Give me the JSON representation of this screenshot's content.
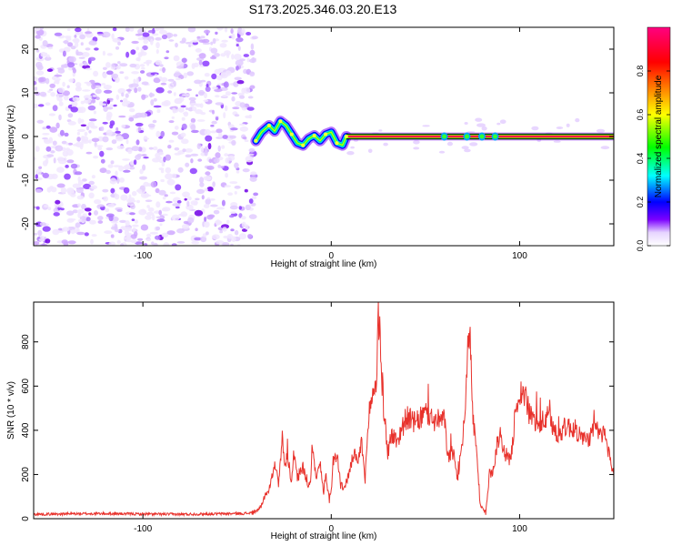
{
  "figure_title": "S173.2025.346.03.20.E13",
  "chart_data": [
    {
      "type": "heatmap",
      "title": "S173.2025.346.03.20.E13",
      "xlabel": "Height of straight line (km)",
      "ylabel": "Frequency (Hz)",
      "xlim": [
        -158,
        150
      ],
      "ylim": [
        -25,
        25
      ],
      "x_ticks": [
        -100,
        0,
        100
      ],
      "y_ticks": [
        -20,
        -10,
        0,
        10,
        20
      ],
      "noise_region_x": [
        -158,
        -40
      ],
      "signal_center_track": [
        {
          "x": -40,
          "y": -1
        },
        {
          "x": -37,
          "y": 1
        },
        {
          "x": -33,
          "y": 2.5
        },
        {
          "x": -30,
          "y": 1.2
        },
        {
          "x": -27,
          "y": 3.5
        },
        {
          "x": -24,
          "y": 2.5
        },
        {
          "x": -21,
          "y": 0.5
        },
        {
          "x": -18,
          "y": -1.5
        },
        {
          "x": -15,
          "y": -2
        },
        {
          "x": -12,
          "y": -0.5
        },
        {
          "x": -9,
          "y": 0.2
        },
        {
          "x": -6,
          "y": -1
        },
        {
          "x": -3,
          "y": 0.5
        },
        {
          "x": 0,
          "y": 1
        },
        {
          "x": 3,
          "y": -1.5
        },
        {
          "x": 6,
          "y": -2
        },
        {
          "x": 8,
          "y": 0
        },
        {
          "x": 150,
          "y": 0
        }
      ],
      "colorbar": {
        "label": "Normalized spectral amplitude",
        "range": [
          0,
          1
        ],
        "ticks": [
          0.0,
          0.2,
          0.4,
          0.6,
          0.8
        ],
        "colors": [
          "#ffffff",
          "#e6d4ff",
          "#7b00ff",
          "#0000ff",
          "#00ffff",
          "#00ff00",
          "#ffff00",
          "#ff8000",
          "#ff0000",
          "#ff0080"
        ]
      }
    },
    {
      "type": "line",
      "xlabel": "Height of straight line (km)",
      "ylabel": "SNR (10 * v/v)",
      "xlim": [
        -158,
        150
      ],
      "ylim": [
        0,
        980
      ],
      "x_ticks": [
        -100,
        0,
        100
      ],
      "y_ticks": [
        0,
        200,
        400,
        600,
        800
      ],
      "line_color": "#e8322c",
      "series": [
        {
          "name": "SNR",
          "x": [
            -158,
            -140,
            -120,
            -100,
            -80,
            -60,
            -45,
            -40,
            -37,
            -35,
            -33,
            -30,
            -28,
            -26,
            -25,
            -23,
            -21,
            -20,
            -18,
            -15,
            -13,
            -11,
            -10,
            -8,
            -6,
            -4,
            -3,
            -1,
            0,
            1,
            3,
            5,
            7,
            10,
            12,
            14,
            16,
            18,
            20,
            22,
            24,
            25,
            26,
            28,
            30,
            32,
            35,
            38,
            40,
            45,
            50,
            55,
            60,
            62,
            65,
            67,
            69,
            71,
            72,
            73,
            74,
            75,
            77,
            79,
            82,
            84,
            86,
            88,
            90,
            92,
            95,
            97,
            98,
            100,
            102,
            105,
            110,
            115,
            120,
            125,
            130,
            135,
            140,
            145,
            148,
            150
          ],
          "y": [
            20,
            22,
            23,
            21,
            20,
            22,
            24,
            30,
            60,
            110,
            130,
            260,
            150,
            370,
            250,
            280,
            160,
            300,
            180,
            240,
            150,
            170,
            350,
            180,
            250,
            120,
            210,
            80,
            120,
            260,
            300,
            150,
            140,
            220,
            300,
            240,
            350,
            180,
            480,
            560,
            620,
            950,
            780,
            480,
            300,
            380,
            350,
            420,
            460,
            430,
            480,
            440,
            450,
            280,
            300,
            180,
            300,
            500,
            680,
            890,
            760,
            480,
            320,
            60,
            25,
            200,
            220,
            340,
            380,
            300,
            260,
            400,
            520,
            560,
            580,
            480,
            420,
            460,
            380,
            420,
            400,
            350,
            400,
            380,
            280,
            180
          ]
        }
      ]
    }
  ]
}
